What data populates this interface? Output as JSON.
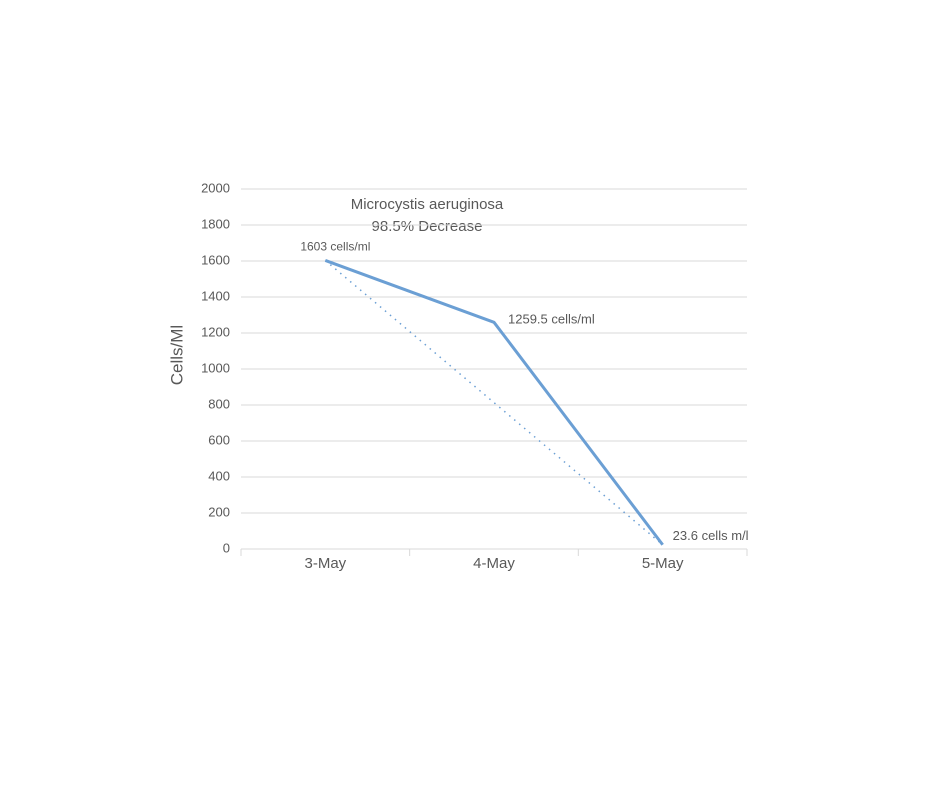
{
  "chart_data": {
    "type": "line",
    "title": "Microcystis aeruginosa",
    "subtitle": "98.5% Decrease",
    "y_label": "Cells/Ml",
    "categories": [
      "3-May",
      "4-May",
      "5-May"
    ],
    "series": [
      {
        "name": "Microcystis aeruginosa",
        "color": "#6b9fd4",
        "values": [
          1603,
          1259.5,
          23.6
        ],
        "value_labels": [
          "1603 cells/ml",
          "1259.5 cells/ml",
          "23.6 cells m/l"
        ]
      }
    ],
    "trendline": "dotted",
    "ylim": [
      0,
      2000
    ],
    "yticks": [
      0,
      200,
      400,
      600,
      800,
      1000,
      1200,
      1400,
      1600,
      1800,
      2000
    ],
    "grid": true
  }
}
